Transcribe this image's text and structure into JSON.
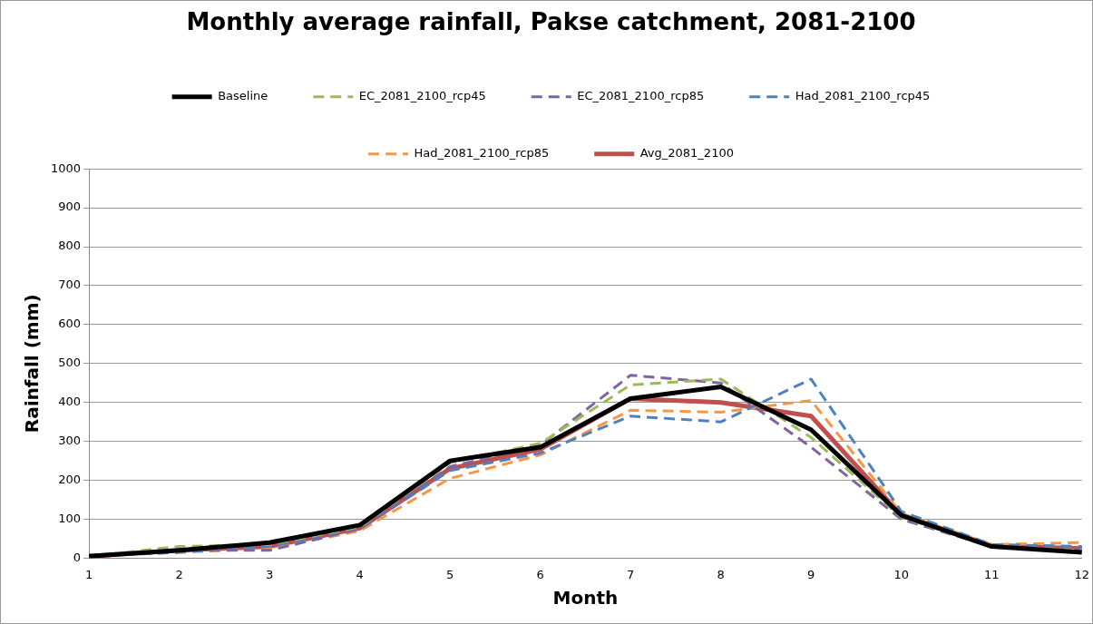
{
  "chart_data": {
    "type": "line",
    "title": "Monthly average rainfall, Pakse catchment, 2081-2100",
    "xlabel": "Month",
    "ylabel": "Rainfall (mm)",
    "categories": [
      "1",
      "2",
      "3",
      "4",
      "5",
      "6",
      "7",
      "8",
      "9",
      "10",
      "11",
      "12"
    ],
    "series": [
      {
        "name": "Baseline",
        "color": "#000000",
        "line_style": "solid",
        "values": [
          5,
          20,
          40,
          85,
          250,
          285,
          410,
          440,
          330,
          110,
          30,
          15
        ]
      },
      {
        "name": "EC_2081_2100_rcp45",
        "color": "#9bbb59",
        "line_style": "dashed",
        "values": [
          5,
          30,
          35,
          80,
          245,
          295,
          445,
          460,
          310,
          105,
          30,
          20
        ]
      },
      {
        "name": "EC_2081_2100_rcp85",
        "color": "#8064a2",
        "line_style": "dashed",
        "values": [
          5,
          20,
          20,
          75,
          235,
          290,
          470,
          450,
          285,
          100,
          30,
          25
        ]
      },
      {
        "name": "Had_2081_2100_rcp45",
        "color": "#4f81bd",
        "line_style": "dashed",
        "values": [
          5,
          15,
          30,
          75,
          225,
          270,
          365,
          350,
          460,
          120,
          35,
          30
        ]
      },
      {
        "name": "Had_2081_2100_rcp85",
        "color": "#f79646",
        "line_style": "dashed",
        "values": [
          5,
          15,
          25,
          70,
          205,
          265,
          380,
          375,
          405,
          115,
          35,
          40
        ]
      },
      {
        "name": "Avg_2081_2100",
        "color": "#c0504d",
        "line_style": "solid",
        "values": [
          5,
          20,
          30,
          77,
          230,
          280,
          410,
          400,
          365,
          110,
          32,
          25
        ]
      }
    ],
    "ylim": [
      0,
      1000
    ],
    "yticks": [
      0,
      100,
      200,
      300,
      400,
      500,
      600,
      700,
      800,
      900,
      1000
    ],
    "grid": "y",
    "legend": "top",
    "marker": "none"
  }
}
